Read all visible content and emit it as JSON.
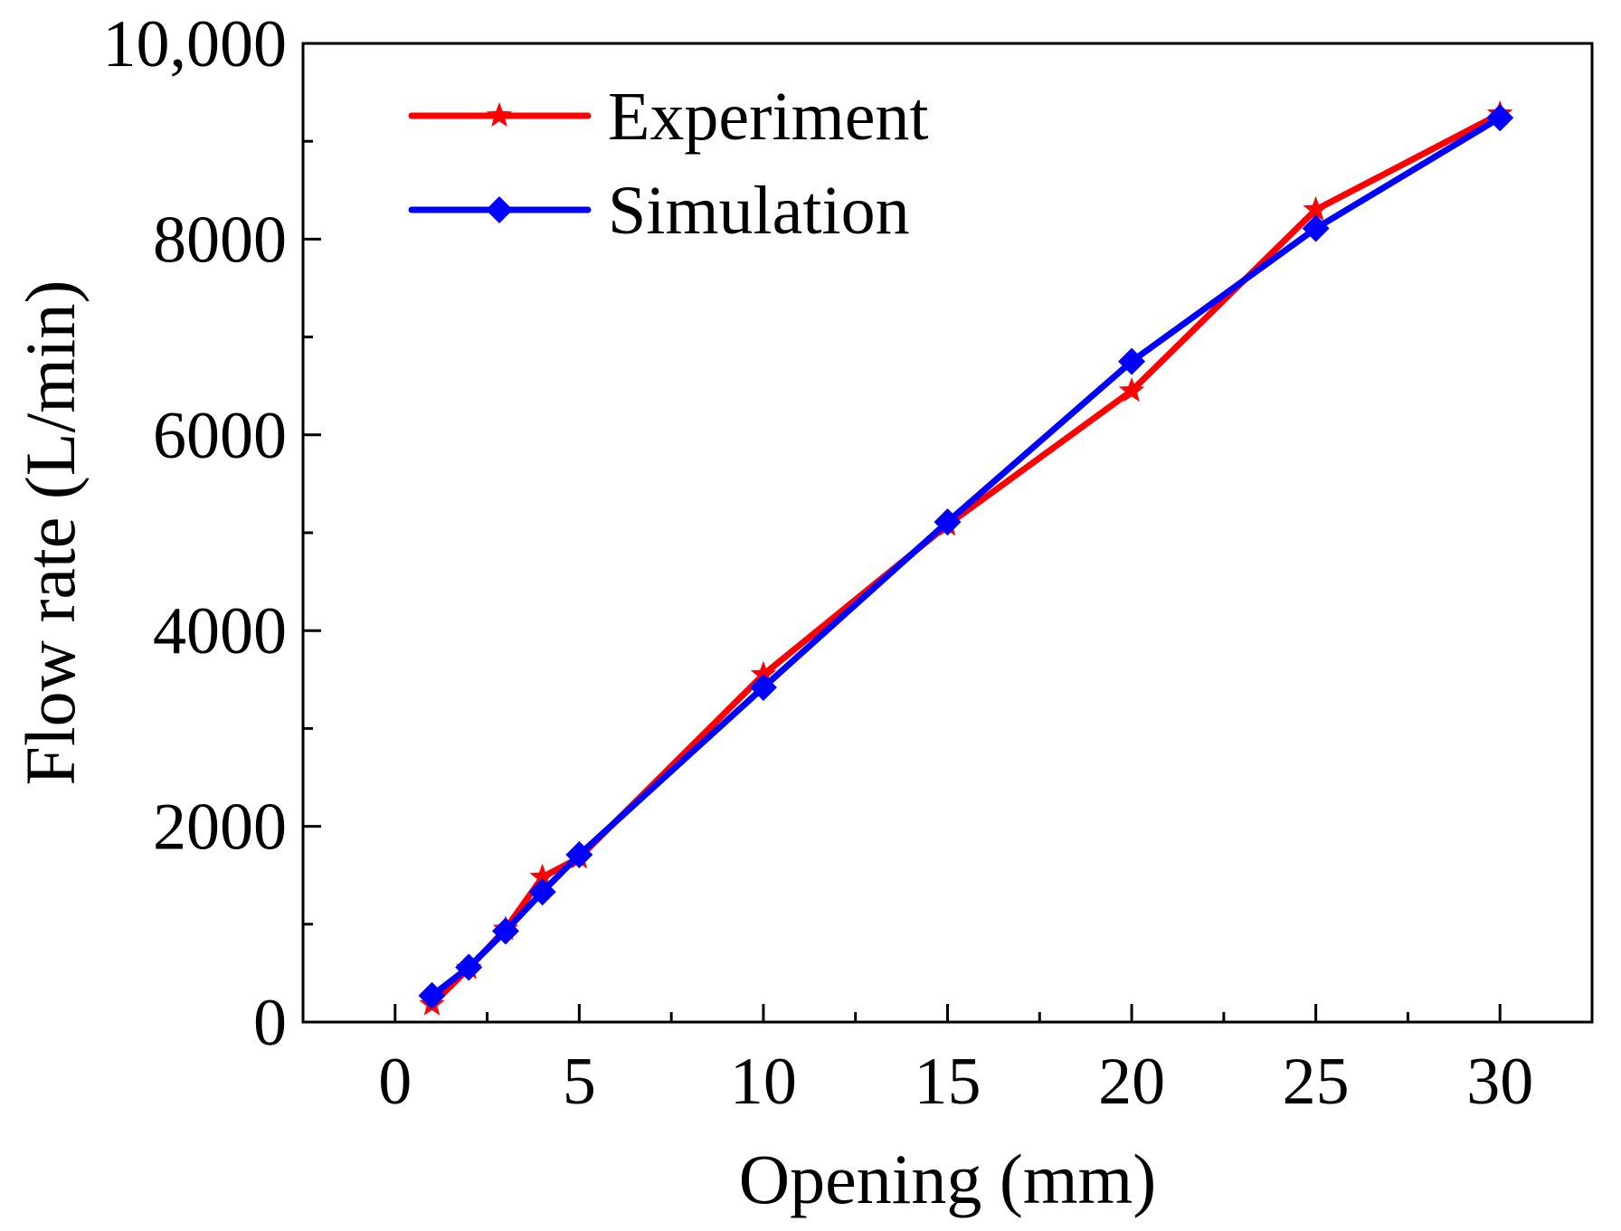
{
  "chart_data": {
    "type": "line",
    "title": "",
    "xlabel": "Opening (mm)",
    "ylabel": "Flow rate (L/min)",
    "xlim": [
      -2.5,
      32.5
    ],
    "ylim": [
      0,
      10000
    ],
    "xticks": [
      0,
      5,
      10,
      15,
      20,
      25,
      30
    ],
    "xtick_labels": [
      "0",
      "5",
      "10",
      "15",
      "20",
      "25",
      "30"
    ],
    "yticks": [
      0,
      2000,
      4000,
      6000,
      8000,
      10000
    ],
    "ytick_labels": [
      "0",
      "2000",
      "4000",
      "6000",
      "8000",
      "10,000"
    ],
    "grid": false,
    "legend_position": "top-left",
    "series": [
      {
        "name": "Experiment",
        "color": "#ff0000",
        "marker": "star",
        "x": [
          1,
          2,
          3,
          4,
          5,
          10,
          15,
          20,
          25,
          30
        ],
        "values": [
          180,
          550,
          950,
          1480,
          1680,
          3550,
          5080,
          6450,
          8300,
          9280
        ]
      },
      {
        "name": "Simulation",
        "color": "#0000ff",
        "marker": "diamond",
        "x": [
          1,
          2,
          3,
          4,
          5,
          10,
          15,
          20,
          25,
          30
        ],
        "values": [
          270,
          560,
          930,
          1330,
          1710,
          3420,
          5110,
          6750,
          8110,
          9240
        ]
      }
    ]
  }
}
